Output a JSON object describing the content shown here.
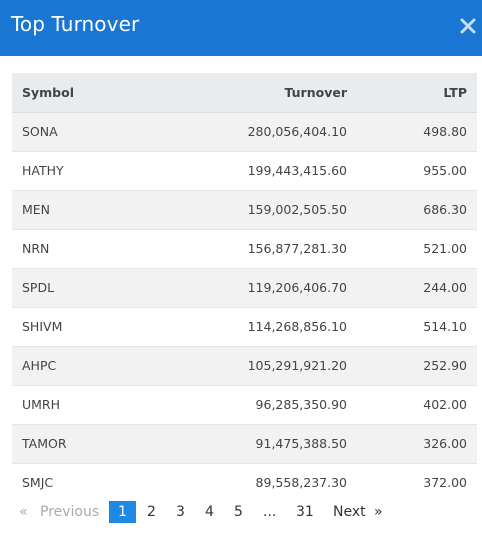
{
  "modal": {
    "title": "Top Turnover",
    "close_icon": "close-icon"
  },
  "table": {
    "headers": {
      "symbol": "Symbol",
      "turnover": "Turnover",
      "ltp": "LTP"
    },
    "rows": [
      {
        "symbol": "SONA",
        "turnover": "280,056,404.10",
        "ltp": "498.80"
      },
      {
        "symbol": "HATHY",
        "turnover": "199,443,415.60",
        "ltp": "955.00"
      },
      {
        "symbol": "MEN",
        "turnover": "159,002,505.50",
        "ltp": "686.30"
      },
      {
        "symbol": "NRN",
        "turnover": "156,877,281.30",
        "ltp": "521.00"
      },
      {
        "symbol": "SPDL",
        "turnover": "119,206,406.70",
        "ltp": "244.00"
      },
      {
        "symbol": "SHIVM",
        "turnover": "114,268,856.10",
        "ltp": "514.10"
      },
      {
        "symbol": "AHPC",
        "turnover": "105,291,921.20",
        "ltp": "252.90"
      },
      {
        "symbol": "UMRH",
        "turnover": "96,285,350.90",
        "ltp": "402.00"
      },
      {
        "symbol": "TAMOR",
        "turnover": "91,475,388.50",
        "ltp": "326.00"
      },
      {
        "symbol": "SMJC",
        "turnover": "89,558,237.30",
        "ltp": "372.00"
      }
    ]
  },
  "pagination": {
    "prev_icon": "«",
    "previous": "Previous",
    "pages": [
      "1",
      "2",
      "3",
      "4",
      "5"
    ],
    "ellipsis": "...",
    "last_page": "31",
    "next": "Next",
    "next_icon": "»",
    "current": "1"
  },
  "colors": {
    "header_bg": "#1976d2",
    "active_page_bg": "#1e88e5",
    "table_header_bg": "#e9ecef"
  }
}
